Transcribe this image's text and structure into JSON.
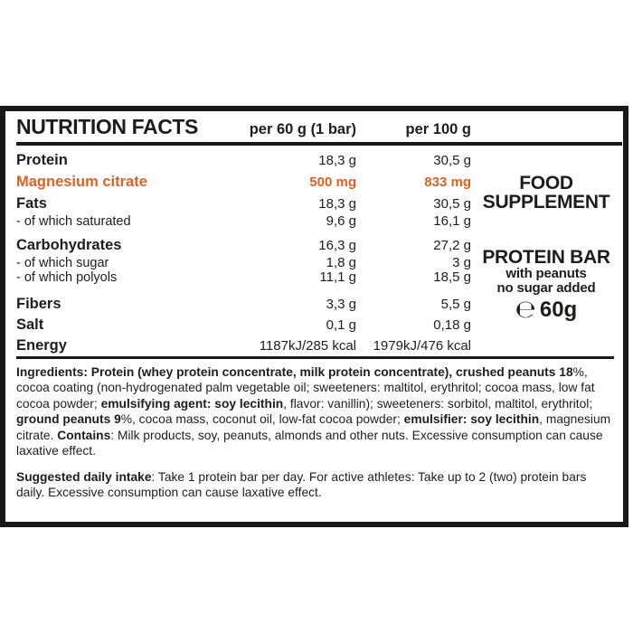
{
  "nutrition": {
    "title": "NUTRITION FACTS",
    "col_per_60g": "per 60 g (1 bar)",
    "col_per_100g": "per 100 g",
    "rows": [
      {
        "label": "Protein",
        "per60": "18,3 g",
        "per100": "30,5 g"
      },
      {
        "label": "Magnesium citrate",
        "per60": "500 mg",
        "per100": "833 mg"
      },
      {
        "label": "Fats",
        "per60": "18,3 g",
        "per100": "30,5 g"
      },
      {
        "label": "- of which saturated",
        "per60": "9,6 g",
        "per100": "16,1 g"
      },
      {
        "label": "Carbohydrates",
        "per60": "16,3 g",
        "per100": "27,2 g"
      },
      {
        "label": "- of which sugar",
        "per60": "1,8 g",
        "per100": "3 g"
      },
      {
        "label": "- of which polyols",
        "per60": "11,1 g",
        "per100": "18,5 g"
      },
      {
        "label": "Fibers",
        "per60": "3,3 g",
        "per100": "5,5 g"
      },
      {
        "label": "Salt",
        "per60": "0,1 g",
        "per100": "0,18 g"
      },
      {
        "label": "Energy",
        "per60": "1187kJ/285 kcal",
        "per100": "1979kJ/476 kcal"
      }
    ]
  },
  "side_panel": {
    "category_line1": "FOOD",
    "category_line2": "SUPPLEMENT",
    "product_name": "PROTEIN BAR",
    "subtitle_line1": "with peanuts",
    "subtitle_line2": "no sugar added",
    "estimated_sign": "℮",
    "net_weight": "60g"
  },
  "ingredients_segments": [
    {
      "b": 1,
      "t": "Ingredients: Protein (whey protein concentrate, milk protein concentrate), crushed peanuts 18"
    },
    {
      "b": 0,
      "t": "%, cocoa coating (non-hydrogenated palm vegetable oil; sweeteners: maltitol, erythritol; cocoa mass, low fat cocoa powder; "
    },
    {
      "b": 1,
      "t": "emulsifying agent: soy lecithin"
    },
    {
      "b": 0,
      "t": ", flavor: vanillin); sweeteners: sorbitol, maltitol, erythritol; "
    },
    {
      "b": 1,
      "t": "ground peanuts 9"
    },
    {
      "b": 0,
      "t": "%, cocoa mass, coconut oil, low-fat cocoa powder; "
    },
    {
      "b": 1,
      "t": "emulsifier: soy lecithin"
    },
    {
      "b": 0,
      "t": ", magnesium citrate. "
    },
    {
      "b": 1,
      "t": "Contains"
    },
    {
      "b": 0,
      "t": ": Milk products, soy, peanuts, almonds and other nuts. Excessive consumption can cause laxative effect."
    }
  ],
  "suggested_intake_segments": [
    {
      "b": 1,
      "t": "Suggested daily intake"
    },
    {
      "b": 0,
      "t": ": Take 1 protein bar per day. For active athletes: Take up to 2 (two) protein bars daily. Excessive consumption can cause laxative effect."
    }
  ],
  "colors": {
    "accent_orange": "#e2601e",
    "text_black": "#1d1d1b"
  }
}
